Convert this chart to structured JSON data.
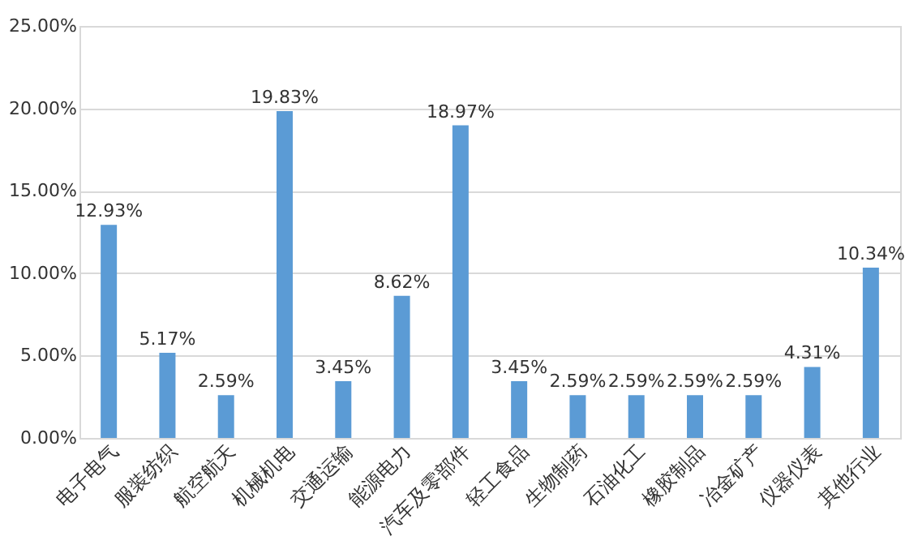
{
  "chart_data": {
    "type": "bar",
    "categories": [
      "电子电气",
      "服装纺织",
      "航空航天",
      "机械机电",
      "交通运输",
      "能源电力",
      "汽车及零部件",
      "轻工食品",
      "生物制药",
      "石油化工",
      "橡胶制品",
      "冶金矿产",
      "仪器仪表",
      "其他行业"
    ],
    "values": [
      12.93,
      5.17,
      2.59,
      19.83,
      3.45,
      8.62,
      18.97,
      3.45,
      2.59,
      2.59,
      2.59,
      2.59,
      4.31,
      10.34
    ],
    "value_labels": [
      "12.93%",
      "5.17%",
      "2.59%",
      "19.83%",
      "3.45%",
      "8.62%",
      "18.97%",
      "3.45%",
      "2.59%",
      "2.59%",
      "2.59%",
      "2.59%",
      "4.31%",
      "10.34%"
    ],
    "color": "#5b9bd5",
    "ylim": [
      0,
      25
    ],
    "yticks": [
      {
        "value": 0,
        "label": "0.00%"
      },
      {
        "value": 5,
        "label": "5.00%"
      },
      {
        "value": 10,
        "label": "10.00%"
      },
      {
        "value": 15,
        "label": "15.00%"
      },
      {
        "value": 20,
        "label": "20.00%"
      },
      {
        "value": 25,
        "label": "25.00%"
      }
    ],
    "grid": "y"
  }
}
